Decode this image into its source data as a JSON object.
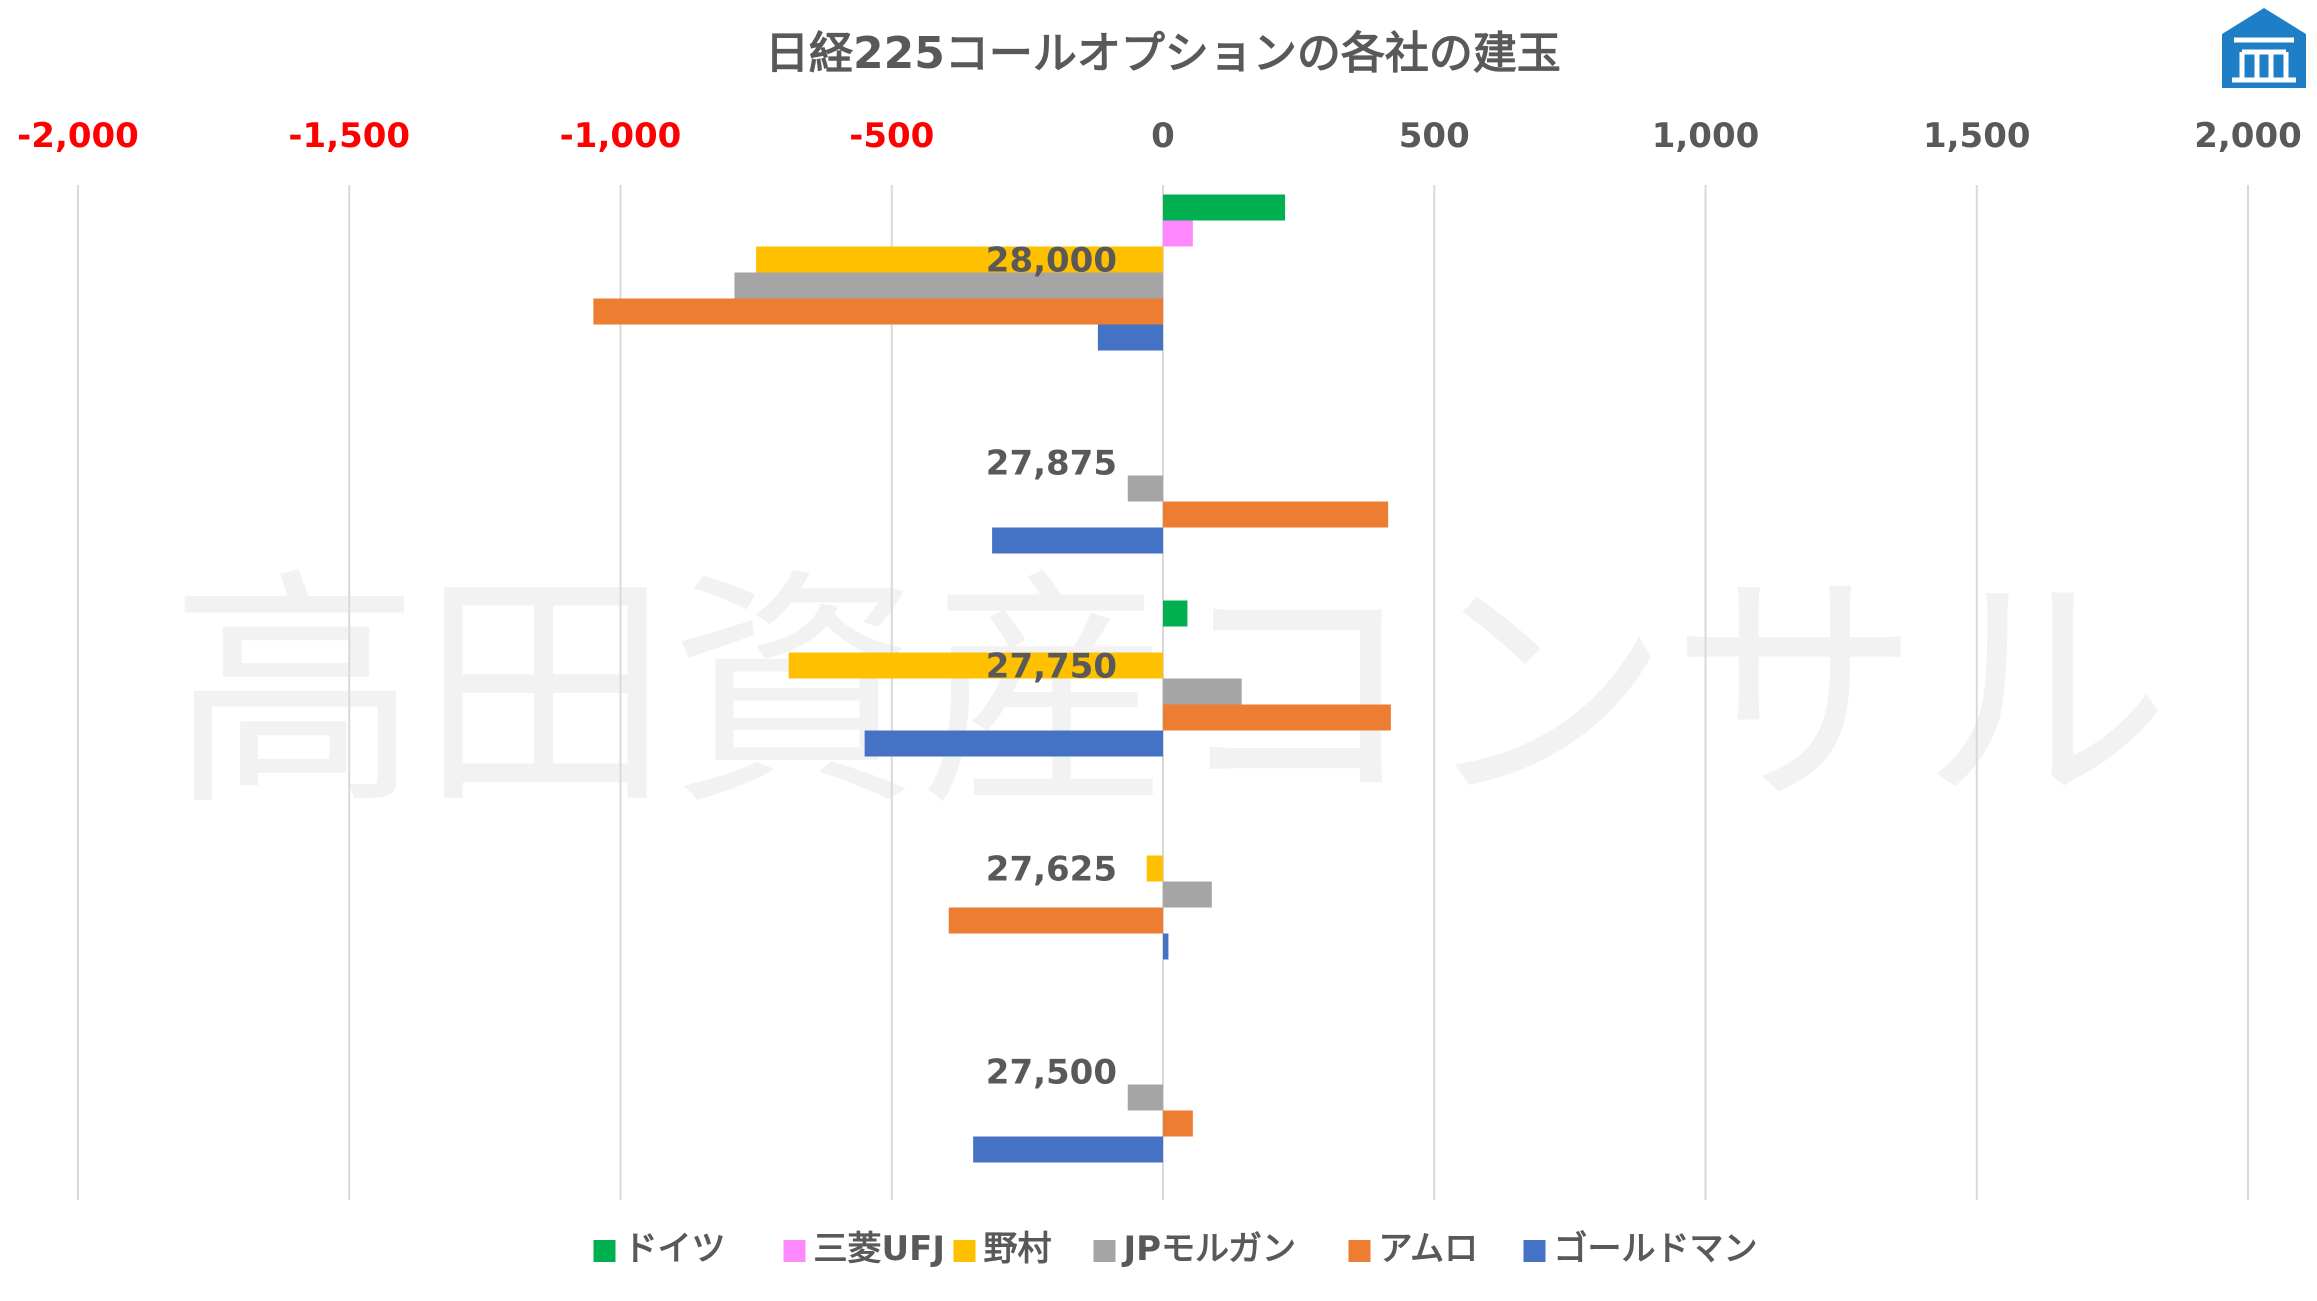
{
  "chart_data": {
    "type": "bar",
    "orientation": "horizontal",
    "title": "日経225コールオプションの各社の建玉",
    "watermark": "高田資産コンサル",
    "xlim": [
      -2000,
      2000
    ],
    "x_ticks": [
      -2000,
      -1500,
      -1000,
      -500,
      0,
      500,
      1000,
      1500,
      2000
    ],
    "x_tick_labels": [
      "-2,000",
      "-1,500",
      "-1,000",
      "-500",
      "0",
      "500",
      "1,000",
      "1,500",
      "2,000"
    ],
    "negative_tick_color": "#ff0000",
    "positive_tick_color": "#595959",
    "grid": true,
    "legend_position": "bottom",
    "categories": [
      "28,000",
      "27,875",
      "27,750",
      "27,625",
      "27,500"
    ],
    "series": [
      {
        "name": "ドイツ",
        "color": "#00b050",
        "values": [
          225,
          0,
          45,
          0,
          0
        ]
      },
      {
        "name": "三菱UFJ",
        "color": "#ff88ff",
        "values": [
          55,
          0,
          0,
          0,
          0
        ]
      },
      {
        "name": "野村",
        "color": "#ffc000",
        "values": [
          -750,
          0,
          -690,
          -30,
          0
        ]
      },
      {
        "name": "JPモルガン",
        "color": "#a5a5a5",
        "values": [
          -790,
          -65,
          145,
          90,
          -65
        ]
      },
      {
        "name": "アムロ",
        "color": "#ed7d31",
        "values": [
          -1050,
          415,
          420,
          -395,
          55
        ]
      },
      {
        "name": "ゴールドマン",
        "color": "#4472c4",
        "values": [
          -120,
          -315,
          -550,
          10,
          -350
        ]
      }
    ]
  },
  "logo": {
    "name": "takata-logo",
    "color": "#1f7fc6"
  }
}
